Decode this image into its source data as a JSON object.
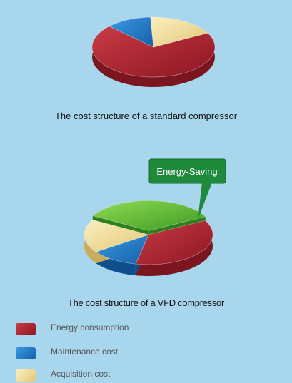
{
  "colors": {
    "background": "#a8d6ec",
    "energy": "#a61f2e",
    "maintenance": "#1e78c7",
    "acquisition": "#ecd68f",
    "energy_saving": "#55b52e",
    "callout": "#1f8a3b"
  },
  "chart_data": [
    {
      "type": "pie",
      "title": "The cost structure of a standard compressor",
      "slices": [
        {
          "name": "Energy consumption",
          "value": 70
        },
        {
          "name": "Maintenance cost",
          "value": 12
        },
        {
          "name": "Acquisition cost",
          "value": 18
        }
      ]
    },
    {
      "type": "pie",
      "title": "The cost structure of a VFD compressor",
      "annotation": "Energy-Saving",
      "slices": [
        {
          "name": "Energy consumption",
          "value": 36
        },
        {
          "name": "Maintenance cost",
          "value": 12
        },
        {
          "name": "Acquisition cost",
          "value": 18
        },
        {
          "name": "Energy-Saving",
          "value": 34
        }
      ]
    }
  ],
  "legend": [
    {
      "label": "Energy consumption",
      "color_key": "energy"
    },
    {
      "label": "Maintenance cost",
      "color_key": "maintenance"
    },
    {
      "label": "Acquisition cost",
      "color_key": "acquisition"
    }
  ]
}
